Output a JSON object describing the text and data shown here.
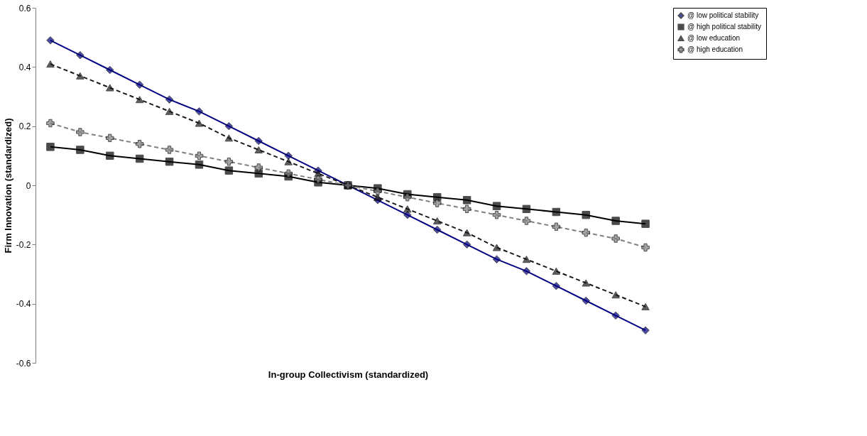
{
  "chart_data": {
    "type": "line",
    "xlabel": "In-group Collectivism (standardized)",
    "ylabel": "Firm Innovation (standardized)",
    "categories": [
      null,
      null,
      null,
      null,
      null,
      null,
      null,
      null,
      null,
      null,
      null,
      null,
      null,
      null,
      null,
      null,
      null,
      null,
      null,
      null,
      null
    ],
    "ylim": [
      -0.6,
      0.6
    ],
    "yticks": [
      -0.6,
      -0.4,
      -0.2,
      0,
      0.2,
      0.4,
      0.6
    ],
    "grid": false,
    "legend": "right",
    "tick_labels": "y",
    "series": [
      {
        "name": "@ low political stability",
        "color": "#000080",
        "marker": "diamond",
        "line_style": "solid",
        "values": [
          0.49,
          0.44,
          0.39,
          0.34,
          0.29,
          0.25,
          0.2,
          0.15,
          0.1,
          0.05,
          0,
          -0.05,
          -0.1,
          -0.15,
          -0.2,
          -0.25,
          -0.29,
          -0.34,
          -0.39,
          -0.44,
          -0.49
        ]
      },
      {
        "name": "@ high political stability",
        "color": "#000000",
        "marker": "square",
        "line_style": "solid",
        "values": [
          0.13,
          0.12,
          0.1,
          0.09,
          0.08,
          0.07,
          0.05,
          0.04,
          0.03,
          0.01,
          0,
          -0.01,
          -0.03,
          -0.04,
          -0.05,
          -0.07,
          -0.08,
          -0.09,
          -0.1,
          -0.12,
          -0.13
        ]
      },
      {
        "name": "@ low education",
        "color": "#1a1a1a",
        "marker": "triangle",
        "line_style": "dashed",
        "values": [
          0.41,
          0.37,
          0.33,
          0.29,
          0.25,
          0.21,
          0.16,
          0.12,
          0.08,
          0.04,
          0,
          -0.04,
          -0.08,
          -0.12,
          -0.16,
          -0.21,
          -0.25,
          -0.29,
          -0.33,
          -0.37,
          -0.41
        ]
      },
      {
        "name": "@ high education",
        "color": "#808080",
        "marker": "cross",
        "line_style": "dashed",
        "values": [
          0.21,
          0.18,
          0.16,
          0.14,
          0.12,
          0.1,
          0.08,
          0.06,
          0.04,
          0.02,
          0,
          -0.02,
          -0.04,
          -0.06,
          -0.08,
          -0.1,
          -0.12,
          -0.14,
          -0.16,
          -0.18,
          -0.21
        ]
      }
    ]
  }
}
